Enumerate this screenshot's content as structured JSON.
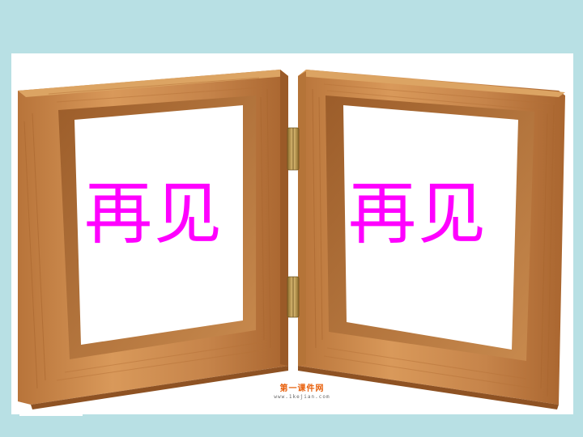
{
  "left_frame": {
    "caption": "再见"
  },
  "right_frame": {
    "caption": "再见"
  },
  "watermark": {
    "title": "第一课件网",
    "url": "www.1kejian.com"
  },
  "colors": {
    "background": "#b8e0e4",
    "caption": "#ff00ff",
    "wood": "#c98a4a",
    "watermark": "#e8600c"
  },
  "icons": [
    "picture-frame-left",
    "picture-frame-right",
    "hinge-icon"
  ]
}
